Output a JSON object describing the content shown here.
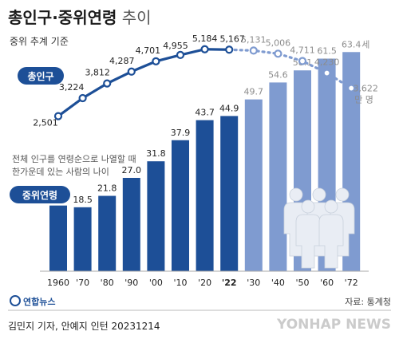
{
  "header": {
    "title_bold": "총인구·중위연령",
    "title_light": " 추이",
    "subtitle": "중위 추계 기준"
  },
  "chart_data": [
    {
      "type": "line",
      "title": "총인구",
      "unit": "만 명",
      "categories": [
        "1960",
        "'70",
        "'80",
        "'90",
        "'00",
        "'10",
        "'20",
        "'22",
        "'30",
        "'40",
        "'50",
        "'60",
        "'72"
      ],
      "series": [
        {
          "name": "총인구",
          "values": [
            2501,
            3224,
            3812,
            4287,
            4701,
            4955,
            5184,
            5167,
            5131,
            5006,
            4711,
            4230,
            3622
          ]
        }
      ],
      "value_labels": [
        "2,501",
        "3,224",
        "3,812",
        "4,287",
        "4,701",
        "4,955",
        "5,184",
        "5,167",
        "5,131",
        "5,006",
        "4,711",
        "4,230",
        "3,622"
      ],
      "projected_from_index": 8,
      "ylim": [
        2200,
        5400
      ]
    },
    {
      "type": "bar",
      "title": "중위연령",
      "unit": "세",
      "note_lines": [
        "전체 인구를 연령순으로 나열할 때",
        "한가운데 있는 사람의 나이"
      ],
      "categories": [
        "1960",
        "'70",
        "'80",
        "'90",
        "'00",
        "'10",
        "'20",
        "'22",
        "'30",
        "'40",
        "'50",
        "'60",
        "'72"
      ],
      "values": [
        19.0,
        18.5,
        21.8,
        27.0,
        31.8,
        37.9,
        43.7,
        44.9,
        49.7,
        54.6,
        58.1,
        61.5,
        63.4
      ],
      "value_labels": [
        "19.0",
        "18.5",
        "21.8",
        "27.0",
        "31.8",
        "37.9",
        "43.7",
        "44.9",
        "49.7",
        "54.6",
        "58.1",
        "61.5",
        "63.4"
      ],
      "projected_from_index": 8,
      "ylim": [
        0,
        66
      ],
      "colors": {
        "actual": "#1d4f97",
        "projected": "#7f9bd0"
      }
    }
  ],
  "axis": {
    "highlight_index": 7
  },
  "colors": {
    "line": "#1d4f97",
    "line_projected": "#7f9bd0",
    "label_actual": "#222222",
    "label_projected": "#8c8c8c",
    "badge": "#1d4f97",
    "people": "#e9edf4"
  },
  "footer": {
    "logo_text": "연합뉴스",
    "source": "자료: 통계청",
    "credit": "김민지 기자, 안예지 인턴  20231214",
    "watermark": "YONHAP NEWS"
  }
}
